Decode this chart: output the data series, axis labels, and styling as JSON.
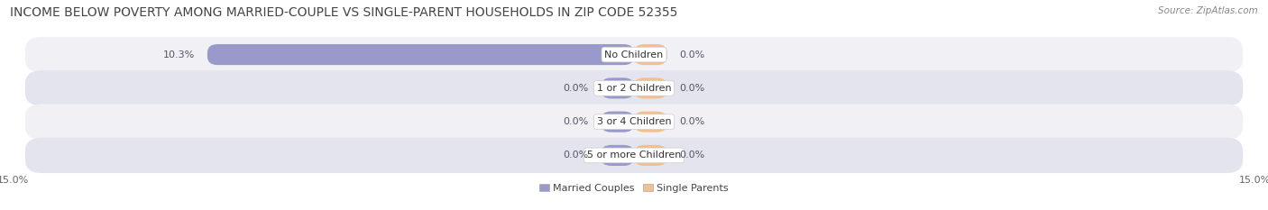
{
  "title": "INCOME BELOW POVERTY AMONG MARRIED-COUPLE VS SINGLE-PARENT HOUSEHOLDS IN ZIP CODE 52355",
  "source": "Source: ZipAtlas.com",
  "categories": [
    "No Children",
    "1 or 2 Children",
    "3 or 4 Children",
    "5 or more Children"
  ],
  "married_values": [
    10.3,
    0.0,
    0.0,
    0.0
  ],
  "single_values": [
    0.0,
    0.0,
    0.0,
    0.0
  ],
  "xlim": 15.0,
  "married_color": "#9999cc",
  "single_color": "#f0c090",
  "row_bg_light": "#f0f0f5",
  "row_bg_dark": "#e4e4ee",
  "label_bg": "#ffffff",
  "value_color": "#555566",
  "title_color": "#444444",
  "source_color": "#888888",
  "legend_married": "Married Couples",
  "legend_single": "Single Parents",
  "bar_height": 0.62,
  "min_bar_width": 0.8,
  "category_label_fontsize": 8.0,
  "value_label_fontsize": 8.0,
  "title_fontsize": 10.0,
  "source_fontsize": 7.5,
  "legend_fontsize": 8.0,
  "tick_fontsize": 8.0
}
